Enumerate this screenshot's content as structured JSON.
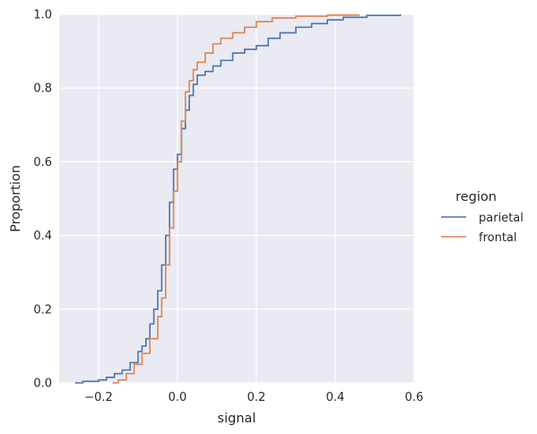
{
  "chart_data": {
    "type": "line",
    "subtype": "ecdf",
    "title": "",
    "xlabel": "signal",
    "ylabel": "Proportion",
    "xlim": [
      -0.3,
      0.6
    ],
    "ylim": [
      0,
      1
    ],
    "xticks": [
      -0.2,
      0.0,
      0.2,
      0.4,
      0.6
    ],
    "xtick_labels": [
      "−0.2",
      "0.0",
      "0.2",
      "0.4",
      "0.6"
    ],
    "yticks": [
      0.0,
      0.2,
      0.4,
      0.6,
      0.8,
      1.0
    ],
    "ytick_labels": [
      "0.0",
      "0.2",
      "0.4",
      "0.6",
      "0.8",
      "1.0"
    ],
    "grid": true,
    "legend": {
      "title": "region",
      "position": "right"
    },
    "series": [
      {
        "name": "parietal",
        "color": "#4c72b0",
        "points": [
          [
            -0.26,
            0.0
          ],
          [
            -0.24,
            0.004
          ],
          [
            -0.2,
            0.008
          ],
          [
            -0.18,
            0.015
          ],
          [
            -0.16,
            0.025
          ],
          [
            -0.14,
            0.035
          ],
          [
            -0.12,
            0.055
          ],
          [
            -0.1,
            0.085
          ],
          [
            -0.09,
            0.1
          ],
          [
            -0.08,
            0.12
          ],
          [
            -0.07,
            0.16
          ],
          [
            -0.06,
            0.2
          ],
          [
            -0.05,
            0.25
          ],
          [
            -0.04,
            0.32
          ],
          [
            -0.03,
            0.4
          ],
          [
            -0.02,
            0.49
          ],
          [
            -0.01,
            0.58
          ],
          [
            0.0,
            0.62
          ],
          [
            0.01,
            0.69
          ],
          [
            0.02,
            0.74
          ],
          [
            0.03,
            0.78
          ],
          [
            0.04,
            0.81
          ],
          [
            0.05,
            0.835
          ],
          [
            0.07,
            0.845
          ],
          [
            0.09,
            0.86
          ],
          [
            0.11,
            0.875
          ],
          [
            0.14,
            0.895
          ],
          [
            0.17,
            0.905
          ],
          [
            0.2,
            0.915
          ],
          [
            0.23,
            0.935
          ],
          [
            0.26,
            0.95
          ],
          [
            0.3,
            0.965
          ],
          [
            0.34,
            0.975
          ],
          [
            0.38,
            0.985
          ],
          [
            0.42,
            0.992
          ],
          [
            0.48,
            0.997
          ],
          [
            0.565,
            1.0
          ]
        ]
      },
      {
        "name": "frontal",
        "color": "#dd8452",
        "points": [
          [
            -0.165,
            0.0
          ],
          [
            -0.15,
            0.008
          ],
          [
            -0.13,
            0.025
          ],
          [
            -0.11,
            0.05
          ],
          [
            -0.09,
            0.08
          ],
          [
            -0.07,
            0.12
          ],
          [
            -0.05,
            0.18
          ],
          [
            -0.04,
            0.23
          ],
          [
            -0.03,
            0.32
          ],
          [
            -0.02,
            0.42
          ],
          [
            -0.01,
            0.52
          ],
          [
            0.0,
            0.6
          ],
          [
            0.01,
            0.71
          ],
          [
            0.02,
            0.79
          ],
          [
            0.03,
            0.82
          ],
          [
            0.04,
            0.85
          ],
          [
            0.05,
            0.87
          ],
          [
            0.07,
            0.895
          ],
          [
            0.09,
            0.92
          ],
          [
            0.11,
            0.935
          ],
          [
            0.14,
            0.95
          ],
          [
            0.17,
            0.965
          ],
          [
            0.2,
            0.98
          ],
          [
            0.24,
            0.99
          ],
          [
            0.3,
            0.995
          ],
          [
            0.38,
            0.998
          ],
          [
            0.46,
            1.0
          ]
        ]
      }
    ]
  }
}
